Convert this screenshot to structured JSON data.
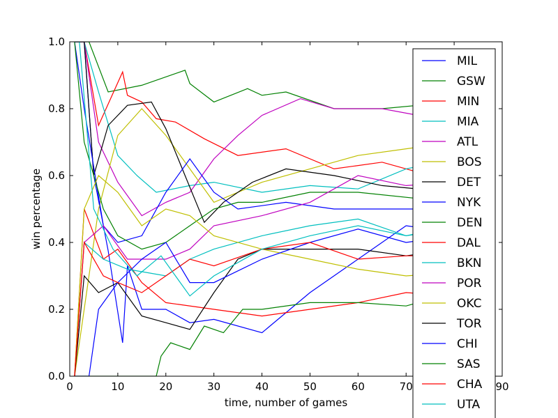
{
  "chart_data": {
    "type": "line",
    "title": "",
    "xlabel": "time, number of games",
    "ylabel": "win percentage",
    "xlim": [
      0,
      90
    ],
    "ylim": [
      0,
      1
    ],
    "x_ticks": [
      "0",
      "10",
      "20",
      "30",
      "40",
      "50",
      "60",
      "70",
      "80",
      "90"
    ],
    "y_ticks": [
      "0.0",
      "0.2",
      "0.4",
      "0.6",
      "0.8",
      "1.0"
    ],
    "x_tick_values": [
      0,
      10,
      20,
      30,
      40,
      50,
      60,
      70,
      80,
      90
    ],
    "y_tick_values": [
      0,
      0.2,
      0.4,
      0.6,
      0.8,
      1.0
    ],
    "grid": false,
    "legend_position": "right",
    "x_range_of_series": [
      1,
      82
    ],
    "series": [
      {
        "name": "MIL",
        "color": "#0000ff",
        "points": [
          [
            1,
            1
          ],
          [
            3,
            1
          ],
          [
            5,
            0.6
          ],
          [
            8,
            0.375
          ],
          [
            11,
            0.1
          ],
          [
            12,
            0.33
          ],
          [
            15,
            0.2
          ],
          [
            20,
            0.2
          ],
          [
            25,
            0.16
          ],
          [
            30,
            0.17
          ],
          [
            40,
            0.13
          ],
          [
            50,
            0.25
          ],
          [
            60,
            0.35
          ],
          [
            70,
            0.45
          ],
          [
            80,
            0.43
          ]
        ]
      },
      {
        "name": "GSW",
        "color": "#008000",
        "points": [
          [
            1,
            1
          ],
          [
            4,
            1
          ],
          [
            8,
            0.85
          ],
          [
            15,
            0.87
          ],
          [
            24,
            0.915
          ],
          [
            25,
            0.875
          ],
          [
            30,
            0.82
          ],
          [
            37,
            0.86
          ],
          [
            40,
            0.84
          ],
          [
            45,
            0.85
          ],
          [
            55,
            0.8
          ],
          [
            65,
            0.8
          ],
          [
            80,
            0.82
          ]
        ]
      },
      {
        "name": "MIN",
        "color": "#ff0000",
        "points": [
          [
            1,
            1
          ],
          [
            3,
            1
          ],
          [
            6,
            0.75
          ],
          [
            11,
            0.91
          ],
          [
            12,
            0.84
          ],
          [
            15,
            0.82
          ],
          [
            18,
            0.77
          ],
          [
            22,
            0.76
          ],
          [
            28,
            0.71
          ],
          [
            35,
            0.66
          ],
          [
            45,
            0.68
          ],
          [
            55,
            0.62
          ],
          [
            65,
            0.64
          ],
          [
            80,
            0.58
          ]
        ]
      },
      {
        "name": "MIA",
        "color": "#00bfbf",
        "points": [
          [
            1,
            1
          ],
          [
            3,
            1
          ],
          [
            6,
            0.85
          ],
          [
            10,
            0.66
          ],
          [
            14,
            0.6
          ],
          [
            18,
            0.55
          ],
          [
            25,
            0.57
          ],
          [
            30,
            0.58
          ],
          [
            40,
            0.55
          ],
          [
            50,
            0.57
          ],
          [
            60,
            0.56
          ],
          [
            70,
            0.62
          ],
          [
            80,
            0.65
          ]
        ]
      },
      {
        "name": "ATL",
        "color": "#bf00bf",
        "points": [
          [
            1,
            1
          ],
          [
            3,
            1
          ],
          [
            6,
            0.7
          ],
          [
            10,
            0.58
          ],
          [
            15,
            0.48
          ],
          [
            20,
            0.52
          ],
          [
            25,
            0.55
          ],
          [
            30,
            0.65
          ],
          [
            35,
            0.72
          ],
          [
            40,
            0.78
          ],
          [
            48,
            0.83
          ],
          [
            55,
            0.8
          ],
          [
            65,
            0.8
          ],
          [
            80,
            0.76
          ]
        ]
      },
      {
        "name": "BOS",
        "color": "#bfbf00",
        "points": [
          [
            1,
            0
          ],
          [
            3,
            0.2
          ],
          [
            6,
            0.5
          ],
          [
            10,
            0.72
          ],
          [
            15,
            0.8
          ],
          [
            20,
            0.72
          ],
          [
            25,
            0.62
          ],
          [
            30,
            0.52
          ],
          [
            40,
            0.58
          ],
          [
            50,
            0.62
          ],
          [
            60,
            0.66
          ],
          [
            70,
            0.68
          ],
          [
            80,
            0.7
          ]
        ]
      },
      {
        "name": "DET",
        "color": "#000000",
        "points": [
          [
            1,
            1
          ],
          [
            3,
            1
          ],
          [
            5,
            0.6
          ],
          [
            8,
            0.75
          ],
          [
            12,
            0.81
          ],
          [
            17,
            0.82
          ],
          [
            20,
            0.74
          ],
          [
            24,
            0.6
          ],
          [
            28,
            0.46
          ],
          [
            32,
            0.52
          ],
          [
            38,
            0.58
          ],
          [
            45,
            0.62
          ],
          [
            55,
            0.6
          ],
          [
            65,
            0.57
          ],
          [
            80,
            0.55
          ]
        ]
      },
      {
        "name": "NYK",
        "color": "#0000ff",
        "points": [
          [
            1,
            1
          ],
          [
            3,
            0.8
          ],
          [
            7,
            0.45
          ],
          [
            10,
            0.4
          ],
          [
            15,
            0.42
          ],
          [
            20,
            0.55
          ],
          [
            25,
            0.65
          ],
          [
            30,
            0.55
          ],
          [
            35,
            0.5
          ],
          [
            45,
            0.52
          ],
          [
            55,
            0.5
          ],
          [
            65,
            0.5
          ],
          [
            80,
            0.5
          ]
        ]
      },
      {
        "name": "DEN",
        "color": "#008000",
        "points": [
          [
            1,
            1
          ],
          [
            3,
            0.7
          ],
          [
            7,
            0.5
          ],
          [
            10,
            0.42
          ],
          [
            15,
            0.38
          ],
          [
            20,
            0.4
          ],
          [
            25,
            0.45
          ],
          [
            30,
            0.5
          ],
          [
            35,
            0.52
          ],
          [
            40,
            0.52
          ],
          [
            50,
            0.55
          ],
          [
            60,
            0.55
          ],
          [
            80,
            0.52
          ]
        ]
      },
      {
        "name": "DAL",
        "color": "#ff0000",
        "points": [
          [
            1,
            0
          ],
          [
            3,
            0.5
          ],
          [
            7,
            0.35
          ],
          [
            10,
            0.38
          ],
          [
            15,
            0.28
          ],
          [
            20,
            0.22
          ],
          [
            30,
            0.2
          ],
          [
            40,
            0.18
          ],
          [
            50,
            0.2
          ],
          [
            60,
            0.22
          ],
          [
            70,
            0.25
          ],
          [
            80,
            0.24
          ]
        ]
      },
      {
        "name": "BKN",
        "color": "#00bfbf",
        "points": [
          [
            1,
            0
          ],
          [
            3,
            0.4
          ],
          [
            7,
            0.35
          ],
          [
            12,
            0.32
          ],
          [
            20,
            0.3
          ],
          [
            25,
            0.35
          ],
          [
            30,
            0.38
          ],
          [
            40,
            0.42
          ],
          [
            50,
            0.45
          ],
          [
            60,
            0.47
          ],
          [
            70,
            0.42
          ],
          [
            80,
            0.44
          ]
        ]
      },
      {
        "name": "POR",
        "color": "#bf00bf",
        "points": [
          [
            1,
            0
          ],
          [
            3,
            0.4
          ],
          [
            7,
            0.45
          ],
          [
            12,
            0.35
          ],
          [
            20,
            0.35
          ],
          [
            25,
            0.38
          ],
          [
            30,
            0.45
          ],
          [
            40,
            0.48
          ],
          [
            50,
            0.52
          ],
          [
            60,
            0.6
          ],
          [
            70,
            0.57
          ],
          [
            80,
            0.58
          ]
        ]
      },
      {
        "name": "OKC",
        "color": "#bfbf00",
        "points": [
          [
            1,
            0
          ],
          [
            3,
            0.5
          ],
          [
            6,
            0.6
          ],
          [
            10,
            0.55
          ],
          [
            15,
            0.45
          ],
          [
            20,
            0.5
          ],
          [
            25,
            0.48
          ],
          [
            30,
            0.42
          ],
          [
            40,
            0.38
          ],
          [
            50,
            0.35
          ],
          [
            60,
            0.32
          ],
          [
            70,
            0.3
          ],
          [
            80,
            0.31
          ]
        ]
      },
      {
        "name": "TOR",
        "color": "#000000",
        "points": [
          [
            1,
            0
          ],
          [
            3,
            0.3
          ],
          [
            6,
            0.25
          ],
          [
            10,
            0.28
          ],
          [
            15,
            0.18
          ],
          [
            20,
            0.16
          ],
          [
            25,
            0.14
          ],
          [
            30,
            0.25
          ],
          [
            35,
            0.35
          ],
          [
            40,
            0.38
          ],
          [
            50,
            0.38
          ],
          [
            60,
            0.38
          ],
          [
            70,
            0.36
          ],
          [
            80,
            0.38
          ]
        ]
      },
      {
        "name": "CHI",
        "color": "#0000ff",
        "points": [
          [
            1,
            0
          ],
          [
            4,
            0
          ],
          [
            6,
            0.2
          ],
          [
            10,
            0.28
          ],
          [
            15,
            0.35
          ],
          [
            20,
            0.4
          ],
          [
            25,
            0.28
          ],
          [
            30,
            0.28
          ],
          [
            40,
            0.35
          ],
          [
            50,
            0.4
          ],
          [
            60,
            0.44
          ],
          [
            70,
            0.4
          ],
          [
            80,
            0.42
          ]
        ]
      },
      {
        "name": "SAS",
        "color": "#008000",
        "points": [
          [
            1,
            0
          ],
          [
            18,
            0
          ],
          [
            19,
            0.06
          ],
          [
            21,
            0.1
          ],
          [
            25,
            0.08
          ],
          [
            28,
            0.15
          ],
          [
            32,
            0.13
          ],
          [
            36,
            0.2
          ],
          [
            40,
            0.2
          ],
          [
            50,
            0.22
          ],
          [
            60,
            0.22
          ],
          [
            70,
            0.21
          ],
          [
            80,
            0.25
          ]
        ]
      },
      {
        "name": "CHA",
        "color": "#ff0000",
        "points": [
          [
            1,
            0
          ],
          [
            3,
            0.4
          ],
          [
            7,
            0.3
          ],
          [
            10,
            0.28
          ],
          [
            15,
            0.25
          ],
          [
            20,
            0.3
          ],
          [
            25,
            0.35
          ],
          [
            30,
            0.33
          ],
          [
            40,
            0.38
          ],
          [
            50,
            0.4
          ],
          [
            60,
            0.35
          ],
          [
            70,
            0.36
          ],
          [
            80,
            0.36
          ]
        ]
      },
      {
        "name": "UTA",
        "color": "#00bfbf",
        "points": [
          [
            1,
            1
          ],
          [
            2,
            1
          ],
          [
            5,
            0.5
          ],
          [
            9,
            0.38
          ],
          [
            14,
            0.3
          ],
          [
            19,
            0.36
          ],
          [
            25,
            0.24
          ],
          [
            30,
            0.3
          ],
          [
            35,
            0.34
          ],
          [
            40,
            0.38
          ],
          [
            50,
            0.42
          ],
          [
            60,
            0.45
          ],
          [
            70,
            0.42
          ],
          [
            80,
            0.45
          ]
        ]
      }
    ]
  }
}
